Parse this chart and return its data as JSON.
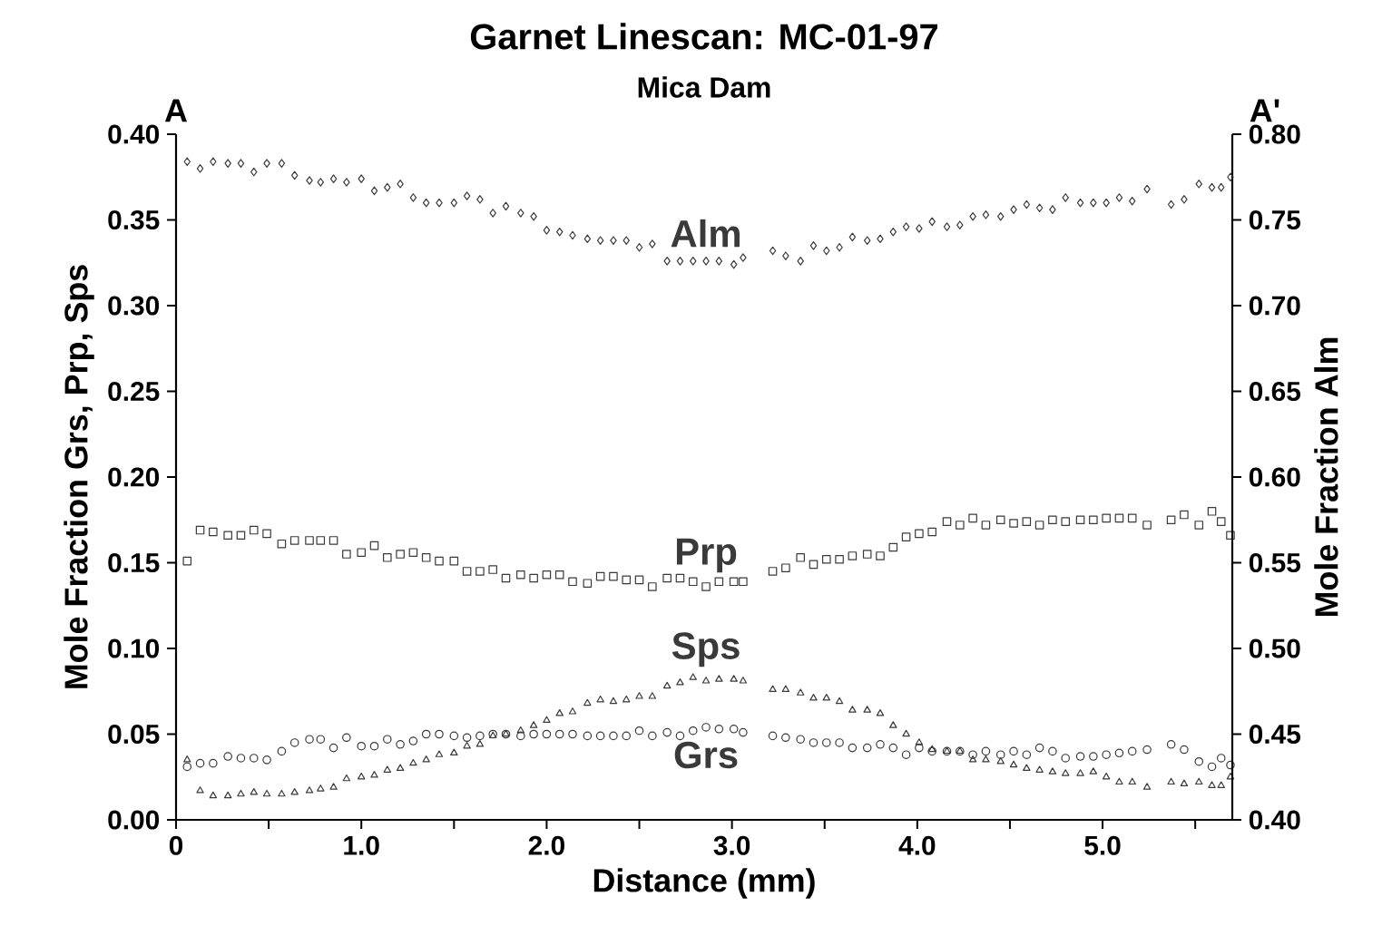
{
  "chart_data": {
    "type": "scatter",
    "title": "Garnet Linescan: MC-01-97",
    "subtitle": "Mica Dam",
    "xlabel": "Distance (mm)",
    "ylabel": "Mole Fraction Grs, Prp, Sps",
    "y2label": "Mole Fraction Alm",
    "annotations": [
      "A",
      "A'"
    ],
    "x": [
      0.06,
      0.13,
      0.2,
      0.28,
      0.35,
      0.42,
      0.49,
      0.57,
      0.64,
      0.72,
      0.78,
      0.85,
      0.92,
      1.0,
      1.07,
      1.14,
      1.21,
      1.28,
      1.35,
      1.42,
      1.5,
      1.57,
      1.64,
      1.71,
      1.78,
      1.86,
      1.93,
      2.0,
      2.07,
      2.14,
      2.22,
      2.29,
      2.36,
      2.43,
      2.5,
      2.57,
      2.65,
      2.72,
      2.79,
      2.86,
      2.93,
      3.01,
      3.06,
      3.22,
      3.29,
      3.37,
      3.44,
      3.51,
      3.58,
      3.65,
      3.73,
      3.8,
      3.87,
      3.94,
      4.01,
      4.08,
      4.16,
      4.23,
      4.3,
      4.37,
      4.45,
      4.52,
      4.59,
      4.66,
      4.73,
      4.8,
      4.88,
      4.95,
      5.02,
      5.09,
      5.16,
      5.24,
      5.37,
      5.44,
      5.52,
      5.59,
      5.64,
      5.69
    ],
    "series": [
      {
        "name": "Alm",
        "color": "#3a3a3a",
        "marker": "diamond",
        "axis": "y2",
        "values": [
          0.784,
          0.78,
          0.784,
          0.783,
          0.783,
          0.778,
          0.783,
          0.783,
          0.776,
          0.773,
          0.772,
          0.774,
          0.772,
          0.774,
          0.767,
          0.769,
          0.771,
          0.763,
          0.76,
          0.76,
          0.76,
          0.764,
          0.762,
          0.754,
          0.758,
          0.754,
          0.752,
          0.744,
          0.743,
          0.741,
          0.739,
          0.738,
          0.738,
          0.738,
          0.734,
          0.736,
          0.726,
          0.726,
          0.726,
          0.726,
          0.726,
          0.724,
          0.728,
          0.732,
          0.729,
          0.726,
          0.735,
          0.732,
          0.734,
          0.74,
          0.738,
          0.739,
          0.743,
          0.746,
          0.745,
          0.749,
          0.746,
          0.747,
          0.752,
          0.753,
          0.752,
          0.756,
          0.759,
          0.757,
          0.756,
          0.763,
          0.76,
          0.76,
          0.76,
          0.763,
          0.761,
          0.768,
          0.759,
          0.762,
          0.771,
          0.769,
          0.769,
          0.775
        ]
      },
      {
        "name": "Prp",
        "color": "#3a3a3a",
        "marker": "square",
        "values": [
          0.151,
          0.169,
          0.168,
          0.166,
          0.166,
          0.169,
          0.167,
          0.161,
          0.163,
          0.163,
          0.163,
          0.163,
          0.155,
          0.156,
          0.16,
          0.153,
          0.155,
          0.156,
          0.153,
          0.151,
          0.151,
          0.145,
          0.145,
          0.146,
          0.141,
          0.143,
          0.141,
          0.143,
          0.143,
          0.139,
          0.138,
          0.142,
          0.142,
          0.14,
          0.14,
          0.136,
          0.141,
          0.141,
          0.139,
          0.136,
          0.139,
          0.139,
          0.139,
          0.145,
          0.147,
          0.153,
          0.149,
          0.152,
          0.152,
          0.154,
          0.155,
          0.154,
          0.159,
          0.165,
          0.167,
          0.168,
          0.174,
          0.172,
          0.176,
          0.172,
          0.175,
          0.173,
          0.174,
          0.172,
          0.175,
          0.174,
          0.175,
          0.175,
          0.176,
          0.176,
          0.176,
          0.172,
          0.175,
          0.178,
          0.172,
          0.18,
          0.174,
          0.166
        ]
      },
      {
        "name": "Sps",
        "color": "#3a3a3a",
        "marker": "triangle",
        "values": [
          0.035,
          0.017,
          0.014,
          0.014,
          0.015,
          0.016,
          0.015,
          0.015,
          0.016,
          0.017,
          0.018,
          0.019,
          0.024,
          0.025,
          0.026,
          0.029,
          0.03,
          0.033,
          0.035,
          0.038,
          0.039,
          0.043,
          0.044,
          0.049,
          0.05,
          0.052,
          0.055,
          0.058,
          0.062,
          0.063,
          0.068,
          0.07,
          0.069,
          0.07,
          0.072,
          0.072,
          0.078,
          0.08,
          0.083,
          0.081,
          0.082,
          0.082,
          0.081,
          0.076,
          0.076,
          0.074,
          0.071,
          0.071,
          0.069,
          0.064,
          0.064,
          0.062,
          0.055,
          0.05,
          0.045,
          0.041,
          0.04,
          0.04,
          0.035,
          0.035,
          0.034,
          0.032,
          0.03,
          0.029,
          0.028,
          0.027,
          0.027,
          0.028,
          0.025,
          0.022,
          0.022,
          0.019,
          0.022,
          0.021,
          0.022,
          0.02,
          0.02,
          0.025
        ]
      },
      {
        "name": "Grs",
        "color": "#3a3a3a",
        "marker": "circle",
        "values": [
          0.031,
          0.033,
          0.033,
          0.037,
          0.036,
          0.036,
          0.035,
          0.04,
          0.045,
          0.047,
          0.047,
          0.042,
          0.048,
          0.043,
          0.043,
          0.047,
          0.044,
          0.046,
          0.05,
          0.05,
          0.049,
          0.048,
          0.049,
          0.05,
          0.05,
          0.049,
          0.05,
          0.05,
          0.05,
          0.05,
          0.049,
          0.049,
          0.049,
          0.049,
          0.052,
          0.049,
          0.051,
          0.049,
          0.052,
          0.054,
          0.053,
          0.053,
          0.051,
          0.049,
          0.048,
          0.047,
          0.045,
          0.045,
          0.045,
          0.042,
          0.042,
          0.044,
          0.042,
          0.038,
          0.042,
          0.04,
          0.04,
          0.04,
          0.038,
          0.04,
          0.038,
          0.04,
          0.038,
          0.042,
          0.04,
          0.036,
          0.037,
          0.037,
          0.038,
          0.039,
          0.04,
          0.041,
          0.044,
          0.041,
          0.034,
          0.031,
          0.036,
          0.032
        ]
      }
    ],
    "xlim": [
      0,
      5.7
    ],
    "xticks": [
      0,
      {
        "value": 0.5,
        "label": null
      },
      {
        "value": 1,
        "label": "1.0"
      },
      {
        "value": 1.5,
        "label": null
      },
      {
        "value": 2,
        "label": "2.0"
      },
      {
        "value": 2.5,
        "label": null
      },
      {
        "value": 3,
        "label": "3.0"
      },
      {
        "value": 3.5,
        "label": null
      },
      {
        "value": 4,
        "label": "4.0"
      },
      {
        "value": 4.5,
        "label": null
      },
      {
        "value": 5,
        "label": "5.0"
      },
      {
        "value": 5.5,
        "label": null
      }
    ],
    "ylim": [
      0,
      0.4
    ],
    "yticks": [
      {
        "value": 0,
        "label": "0.00"
      },
      0.05,
      {
        "value": 0.1,
        "label": "0.10"
      },
      0.15,
      {
        "value": 0.2,
        "label": "0.20"
      },
      0.25,
      {
        "value": 0.3,
        "label": "0.30"
      },
      0.35,
      {
        "value": 0.4,
        "label": "0.40"
      }
    ],
    "y2lim": [
      0.4,
      0.8
    ],
    "y2ticks": [
      {
        "value": 0.4,
        "label": "0.40"
      },
      0.45,
      {
        "value": 0.5,
        "label": "0.50"
      },
      0.55,
      {
        "value": 0.6,
        "label": "0.60"
      },
      0.65,
      {
        "value": 0.7,
        "label": "0.70"
      },
      0.75,
      {
        "value": 0.8,
        "label": "0.80"
      }
    ]
  }
}
